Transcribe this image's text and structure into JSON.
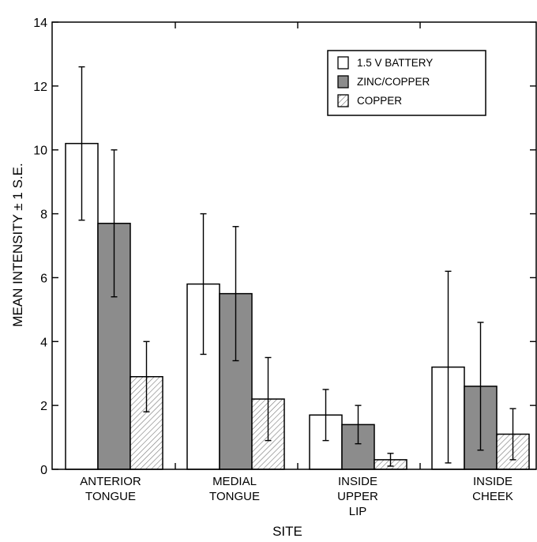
{
  "chart_data": {
    "type": "bar",
    "title": "",
    "xlabel": "SITE",
    "ylabel": "MEAN INTENSITY ± 1 S.E.",
    "ylim": [
      0,
      14
    ],
    "yticks": [
      "0",
      "2",
      "4",
      "6",
      "8",
      "10",
      "12",
      "14"
    ],
    "categories": [
      [
        "ANTERIOR",
        "TONGUE"
      ],
      [
        "MEDIAL",
        "TONGUE"
      ],
      [
        "INSIDE",
        "UPPER",
        "LIP"
      ],
      [
        "INSIDE",
        "CHEEK"
      ]
    ],
    "series": [
      {
        "name": "1.5 V BATTERY",
        "fill": "#ffffff",
        "pattern": "none",
        "values": [
          10.2,
          5.8,
          1.7,
          3.2
        ],
        "errors": [
          2.4,
          2.2,
          0.8,
          3.0
        ]
      },
      {
        "name": "ZINC/COPPER",
        "fill": "#8c8c8c",
        "pattern": "none",
        "values": [
          7.7,
          5.5,
          1.4,
          2.6
        ],
        "errors": [
          2.3,
          2.1,
          0.6,
          2.0
        ]
      },
      {
        "name": "COPPER",
        "fill": "#ffffff",
        "pattern": "hatch",
        "values": [
          2.9,
          2.2,
          0.3,
          1.1
        ],
        "errors": [
          1.1,
          1.3,
          0.2,
          0.8
        ]
      }
    ],
    "legend_position": "top-right",
    "grid": false
  }
}
